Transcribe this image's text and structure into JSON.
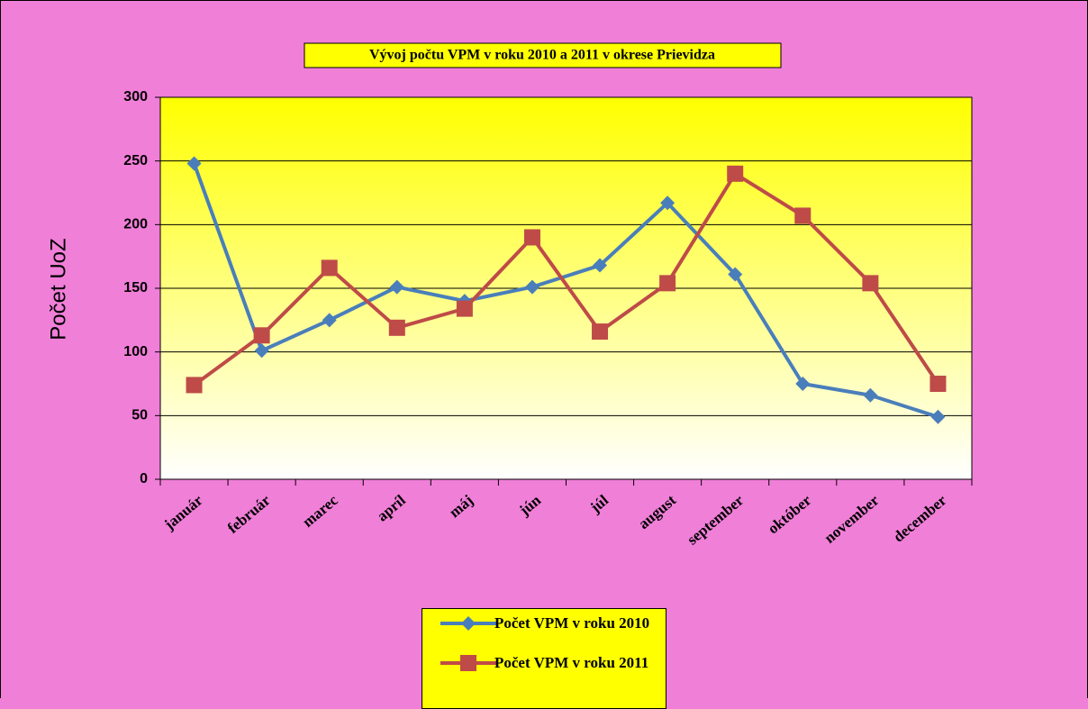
{
  "chart_data": {
    "type": "line",
    "title": "Vývoj počtu VPM v roku 2010 a 2011 v okrese Prievidza",
    "y_label": "Počet UoZ",
    "categories": [
      "január",
      "február",
      "marec",
      "apríl",
      "máj",
      "jún",
      "júl",
      "august",
      "september",
      "október",
      "november",
      "december"
    ],
    "series": [
      {
        "name": "Počet VPM v roku 2010",
        "color": "#4a7ebb",
        "marker": "diamond",
        "values": [
          248,
          101,
          125,
          151,
          140,
          151,
          168,
          217,
          161,
          75,
          66,
          49
        ]
      },
      {
        "name": "Počet VPM v roku 2011",
        "color": "#be4b48",
        "marker": "square",
        "values": [
          74,
          113,
          166,
          119,
          134,
          190,
          116,
          154,
          240,
          207,
          154,
          75
        ]
      }
    ],
    "ylim": [
      0,
      300
    ],
    "yticks": [
      0,
      50,
      100,
      150,
      200,
      250,
      300
    ],
    "grid": true,
    "legend": "bottom"
  }
}
